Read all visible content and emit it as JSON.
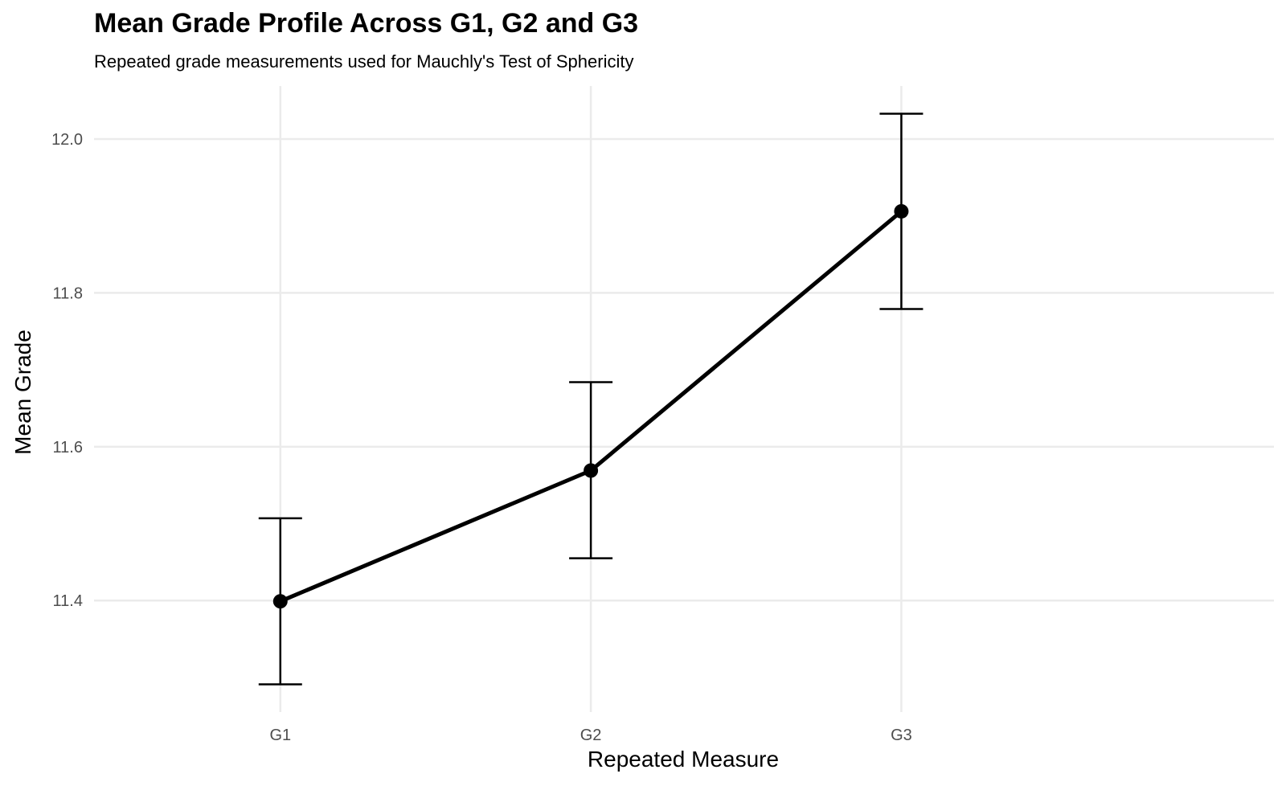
{
  "title": "Mean Grade Profile Across G1, G2 and G3",
  "subtitle": "Repeated grade measurements used for Mauchly's Test of Sphericity",
  "chart_data": {
    "type": "line",
    "title": "Mean Grade Profile Across G1, G2 and G3",
    "subtitle": "Repeated grade measurements used for Mauchly's Test of Sphericity",
    "xlabel": "Repeated Measure",
    "ylabel": "Mean Grade",
    "categories": [
      "G1",
      "G2",
      "G3"
    ],
    "series": [
      {
        "values": [
          11.399,
          11.569,
          11.906
        ],
        "error_lower": [
          11.291,
          11.455,
          11.779
        ],
        "error_upper": [
          11.507,
          11.684,
          12.033
        ]
      }
    ],
    "y_ticks": [
      11.4,
      11.6,
      11.8,
      12.0
    ],
    "y_tick_labels": [
      "11.4",
      "11.6",
      "11.8",
      "12.0"
    ],
    "ylim": [
      11.255,
      12.069
    ],
    "grid": true,
    "legend": "none",
    "line_color": "#000000",
    "grid_color": "#ebebeb"
  }
}
